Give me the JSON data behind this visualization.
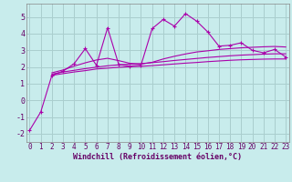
{
  "xlabel": "Windchill (Refroidissement éolien,°C)",
  "background_color": "#c8ecec",
  "grid_color": "#aacece",
  "line_color": "#aa00aa",
  "x": [
    0,
    1,
    2,
    3,
    4,
    5,
    6,
    7,
    8,
    9,
    10,
    11,
    12,
    13,
    14,
    15,
    16,
    17,
    18,
    19,
    20,
    21,
    22,
    23
  ],
  "y_main": [
    -1.8,
    -0.7,
    1.5,
    1.75,
    2.2,
    3.1,
    2.1,
    4.35,
    2.15,
    2.05,
    2.1,
    4.3,
    4.85,
    4.45,
    5.2,
    4.75,
    4.1,
    3.25,
    3.3,
    3.45,
    3.0,
    2.85,
    3.05,
    2.6
  ],
  "y_upper": [
    null,
    null,
    1.65,
    1.82,
    2.05,
    2.25,
    2.42,
    2.52,
    2.38,
    2.22,
    2.17,
    2.28,
    2.48,
    2.64,
    2.78,
    2.9,
    2.97,
    3.05,
    3.1,
    3.15,
    3.18,
    3.21,
    3.23,
    3.2
  ],
  "y_lower": [
    null,
    null,
    1.5,
    1.6,
    1.7,
    1.78,
    1.88,
    1.93,
    1.98,
    2.02,
    2.04,
    2.08,
    2.13,
    2.18,
    2.23,
    2.27,
    2.32,
    2.36,
    2.4,
    2.43,
    2.45,
    2.47,
    2.48,
    2.48
  ],
  "y_mid": [
    null,
    null,
    1.57,
    1.7,
    1.8,
    1.9,
    1.99,
    2.07,
    2.13,
    2.17,
    2.2,
    2.26,
    2.32,
    2.39,
    2.45,
    2.51,
    2.57,
    2.62,
    2.67,
    2.71,
    2.74,
    2.77,
    2.79,
    2.79
  ],
  "ylim": [
    -2.5,
    5.8
  ],
  "xlim": [
    -0.3,
    23.3
  ],
  "yticks": [
    -2,
    -1,
    0,
    1,
    2,
    3,
    4,
    5
  ],
  "xticks": [
    0,
    1,
    2,
    3,
    4,
    5,
    6,
    7,
    8,
    9,
    10,
    11,
    12,
    13,
    14,
    15,
    16,
    17,
    18,
    19,
    20,
    21,
    22,
    23
  ],
  "tick_fontsize": 5.5,
  "xlabel_fontsize": 6.0
}
